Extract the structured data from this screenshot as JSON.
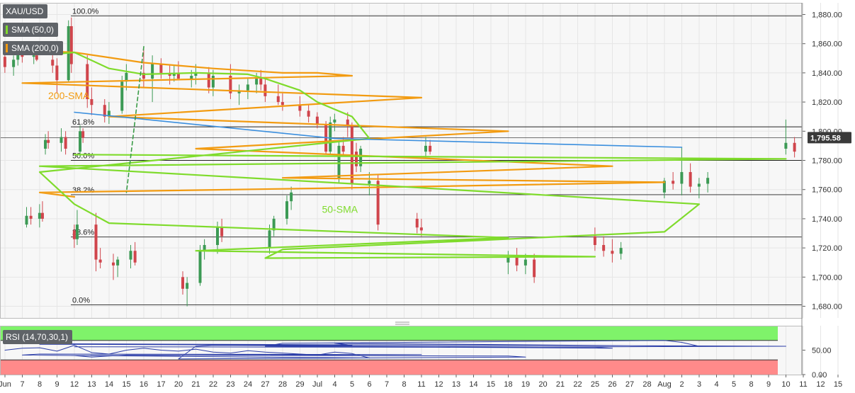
{
  "symbol": "XAU/USD",
  "indicators": [
    {
      "label": "SMA (50,0)",
      "color": "#7fdb2c"
    },
    {
      "label": "SMA (200,0)",
      "color": "#f29b11"
    }
  ],
  "rsi_label": "RSI (14,70,30,1)",
  "current_price_label": "1,795.58",
  "colors": {
    "up": "#3c9a55",
    "down": "#d0454c",
    "sma50": "#7fdb2c",
    "sma200": "#f29b11",
    "resistance": "#3b8fde",
    "trendline": "#3b9c48",
    "rsi_line": "#2c3ea8",
    "overbought": "#7ff36a",
    "oversold": "#ff8a8a"
  },
  "chart_data": [
    {
      "type": "candlestick",
      "title": "XAU/USD",
      "xlabel": "",
      "ylabel": "",
      "ylim": [
        1672,
        1888
      ],
      "x_ticks": [
        "Jun",
        "7",
        "8",
        "9",
        "12",
        "13",
        "14",
        "15",
        "16",
        "17",
        "20",
        "21",
        "22",
        "23",
        "24",
        "27",
        "28",
        "29",
        "Jul",
        "4",
        "5",
        "6",
        "7",
        "8",
        "11",
        "12",
        "13",
        "14",
        "15",
        "18",
        "19",
        "20",
        "21",
        "22",
        "25",
        "26",
        "27",
        "28",
        "Aug",
        "2",
        "3",
        "4",
        "5",
        "8",
        "9",
        "10",
        "11",
        "12",
        "15"
      ],
      "y_ticks": [
        1680,
        1700,
        1720,
        1740,
        1760,
        1780,
        1800,
        1820,
        1840,
        1860,
        1880
      ],
      "y_tick_labels": [
        "1,680.00",
        "1,700.00",
        "1,720.00",
        "1,740.00",
        "1,760.00",
        "1,780.00",
        "1,800.00",
        "1,820.00",
        "1,840.00",
        "1,860.00",
        "1,880.00"
      ],
      "fib_levels": [
        {
          "label": "100.0%",
          "price": 1879
        },
        {
          "label": "61.8%",
          "price": 1803
        },
        {
          "label": "50.0%",
          "price": 1780
        },
        {
          "label": "38.2%",
          "price": 1756.5
        },
        {
          "label": "23.6%",
          "price": 1727.5
        },
        {
          "label": "0.0%",
          "price": 1681
        }
      ],
      "current_price": 1795.58,
      "series": [
        {
          "name": "200-SMA",
          "points": [
            [
              "Jun",
              1856
            ],
            [
              "12",
              1854
            ],
            [
              "16",
              1847
            ],
            [
              "22",
              1843
            ],
            [
              "28",
              1840
            ],
            [
              "Jul",
              1840
            ],
            [
              "5",
              1838
            ],
            [
              "7",
              1833
            ],
            [
              "11",
              1823
            ],
            [
              "14",
              1810
            ],
            [
              "18",
              1800
            ],
            [
              "21",
              1788
            ],
            [
              "26",
              1776
            ],
            [
              "28",
              1768
            ],
            [
              "Aug",
              1765
            ],
            [
              "4",
              1761
            ],
            [
              "8",
              1758
            ],
            [
              "12",
              1755
            ]
          ]
        },
        {
          "name": "50-SMA",
          "points": [
            [
              "Jun",
              1857
            ],
            [
              "9",
              1853
            ],
            [
              "12",
              1854
            ],
            [
              "14",
              1843
            ],
            [
              "16",
              1839
            ],
            [
              "21",
              1840
            ],
            [
              "24",
              1839
            ],
            [
              "27",
              1836
            ],
            [
              "29",
              1828
            ],
            [
              "Jul",
              1820
            ],
            [
              "5",
              1810
            ],
            [
              "6",
              1795
            ],
            [
              "8",
              1772
            ],
            [
              "12",
              1750
            ],
            [
              "14",
              1737
            ],
            [
              "18",
              1727
            ],
            [
              "21",
              1718
            ],
            [
              "25",
              1714
            ],
            [
              "27",
              1713
            ],
            [
              "28",
              1719
            ],
            [
              "Aug",
              1731
            ],
            [
              "3",
              1750
            ],
            [
              "5",
              1764
            ],
            [
              "8",
              1776
            ],
            [
              "10",
              1781
            ],
            [
              "12",
              1784
            ]
          ]
        },
        {
          "name": "resistance",
          "points": [
            [
              "2",
              1789
            ],
            [
              "4",
              1795
            ],
            [
              "12",
              1813
            ]
          ]
        },
        {
          "name": "trendline",
          "points": [
            [
              "16",
              1858
            ],
            [
              "15",
              1758
            ]
          ]
        }
      ],
      "candles": [
        [
          "Jun",
          1851,
          1856,
          1840,
          1844
        ],
        [
          "Jun",
          1844,
          1852,
          1838,
          1849
        ],
        [
          "7",
          1849,
          1858,
          1845,
          1853
        ],
        [
          "7",
          1853,
          1856,
          1847,
          1851
        ],
        [
          "8",
          1851,
          1855,
          1846,
          1852
        ],
        [
          "8",
          1852,
          1858,
          1848,
          1849
        ],
        [
          "9",
          1849,
          1853,
          1840,
          1845
        ],
        [
          "9",
          1845,
          1850,
          1826,
          1835
        ],
        [
          "12",
          1835,
          1876,
          1834,
          1872
        ],
        [
          "12",
          1872,
          1878,
          1840,
          1846
        ],
        [
          "13",
          1846,
          1852,
          1816,
          1822
        ],
        [
          "13",
          1822,
          1830,
          1811,
          1818
        ],
        [
          "14",
          1818,
          1822,
          1806,
          1810
        ],
        [
          "14",
          1810,
          1820,
          1805,
          1814
        ],
        [
          "15",
          1814,
          1838,
          1812,
          1834
        ],
        [
          "15",
          1834,
          1846,
          1828,
          1840
        ],
        [
          "16",
          1840,
          1857,
          1830,
          1836
        ],
        [
          "16",
          1836,
          1852,
          1820,
          1846
        ],
        [
          "17",
          1846,
          1850,
          1836,
          1840
        ],
        [
          "17",
          1840,
          1845,
          1832,
          1838
        ],
        [
          "20",
          1838,
          1845,
          1834,
          1840
        ],
        [
          "20",
          1840,
          1848,
          1836,
          1836
        ],
        [
          "21",
          1836,
          1842,
          1830,
          1838
        ],
        [
          "21",
          1838,
          1846,
          1832,
          1840
        ],
        [
          "22",
          1840,
          1844,
          1826,
          1830
        ],
        [
          "22",
          1830,
          1842,
          1824,
          1838
        ],
        [
          "23",
          1838,
          1846,
          1822,
          1826
        ],
        [
          "23",
          1826,
          1832,
          1818,
          1828
        ],
        [
          "24",
          1828,
          1836,
          1822,
          1832
        ],
        [
          "24",
          1832,
          1840,
          1826,
          1836
        ],
        [
          "27",
          1836,
          1842,
          1828,
          1832
        ],
        [
          "27",
          1832,
          1836,
          1820,
          1824
        ],
        [
          "28",
          1824,
          1832,
          1818,
          1820
        ],
        [
          "28",
          1820,
          1826,
          1814,
          1818
        ],
        [
          "29",
          1818,
          1824,
          1810,
          1814
        ],
        [
          "29",
          1814,
          1818,
          1806,
          1810
        ],
        [
          "Jul",
          1810,
          1813,
          1802,
          1805
        ],
        [
          "Jul",
          1805,
          1807,
          1784,
          1786
        ],
        [
          "4",
          1786,
          1810,
          1784,
          1806
        ],
        [
          "4",
          1806,
          1812,
          1800,
          1808
        ],
        [
          "5",
          1808,
          1813,
          1796,
          1804
        ],
        [
          "5",
          1804,
          1806,
          1760,
          1764
        ],
        [
          "6",
          1764,
          1772,
          1756,
          1766
        ],
        [
          "6",
          1766,
          1770,
          1732,
          1736
        ],
        [
          "7",
          1736,
          1748,
          1734,
          1742
        ],
        [
          "7",
          1742,
          1748,
          1736,
          1740
        ],
        [
          "8",
          1740,
          1750,
          1734,
          1744
        ],
        [
          "8",
          1744,
          1752,
          1738,
          1740
        ],
        [
          "11",
          1740,
          1744,
          1730,
          1734
        ],
        [
          "11",
          1734,
          1740,
          1728,
          1732
        ],
        [
          "12",
          1732,
          1736,
          1720,
          1726
        ],
        [
          "12",
          1726,
          1746,
          1722,
          1736
        ],
        [
          "13",
          1736,
          1744,
          1704,
          1712
        ],
        [
          "13",
          1712,
          1720,
          1706,
          1710
        ],
        [
          "14",
          1710,
          1716,
          1698,
          1708
        ],
        [
          "14",
          1708,
          1714,
          1700,
          1712
        ],
        [
          "15",
          1712,
          1722,
          1706,
          1718
        ],
        [
          "15",
          1718,
          1724,
          1708,
          1710
        ],
        [
          "18",
          1710,
          1718,
          1702,
          1714
        ],
        [
          "18",
          1714,
          1720,
          1704,
          1708
        ],
        [
          "19",
          1708,
          1716,
          1702,
          1712
        ],
        [
          "19",
          1712,
          1716,
          1696,
          1700
        ],
        [
          "20",
          1700,
          1704,
          1688,
          1692
        ],
        [
          "20",
          1692,
          1700,
          1680,
          1696
        ],
        [
          "21",
          1696,
          1722,
          1694,
          1718
        ],
        [
          "21",
          1718,
          1726,
          1712,
          1722
        ],
        [
          "22",
          1722,
          1738,
          1716,
          1734
        ],
        [
          "22",
          1734,
          1740,
          1724,
          1728
        ],
        [
          "25",
          1728,
          1734,
          1718,
          1722
        ],
        [
          "25",
          1722,
          1728,
          1714,
          1718
        ],
        [
          "26",
          1718,
          1726,
          1710,
          1716
        ],
        [
          "26",
          1716,
          1724,
          1712,
          1720
        ],
        [
          "27",
          1720,
          1736,
          1716,
          1732
        ],
        [
          "27",
          1732,
          1742,
          1728,
          1740
        ],
        [
          "28",
          1740,
          1756,
          1736,
          1752
        ],
        [
          "28",
          1752,
          1762,
          1746,
          1758
        ],
        [
          "Aug",
          1758,
          1768,
          1754,
          1766
        ],
        [
          "Aug",
          1766,
          1772,
          1760,
          1764
        ],
        [
          "2",
          1764,
          1789,
          1756,
          1772
        ],
        [
          "2",
          1772,
          1778,
          1758,
          1762
        ],
        [
          "3",
          1762,
          1768,
          1754,
          1764
        ],
        [
          "3",
          1764,
          1772,
          1758,
          1768
        ],
        [
          "4",
          1768,
          1794,
          1764,
          1790
        ],
        [
          "4",
          1790,
          1796,
          1784,
          1786
        ],
        [
          "5",
          1786,
          1792,
          1772,
          1776
        ],
        [
          "5",
          1776,
          1790,
          1772,
          1788
        ],
        [
          "8",
          1788,
          1798,
          1784,
          1794
        ],
        [
          "8",
          1794,
          1800,
          1788,
          1792
        ],
        [
          "9",
          1792,
          1802,
          1786,
          1796
        ],
        [
          "9",
          1796,
          1800,
          1784,
          1788
        ],
        [
          "10",
          1788,
          1808,
          1784,
          1792
        ],
        [
          "10",
          1792,
          1796,
          1782,
          1786
        ],
        [
          "11",
          1786,
          1796,
          1782,
          1790
        ],
        [
          "11",
          1790,
          1794,
          1784,
          1786
        ],
        [
          "12",
          1786,
          1804,
          1782,
          1800
        ],
        [
          "12",
          1800,
          1802,
          1792,
          1795.58
        ]
      ]
    },
    {
      "type": "line",
      "title": "RSI (14,70,30,1)",
      "ylim": [
        0,
        100
      ],
      "y_ticks": [
        0,
        50
      ],
      "y_tick_labels": [
        "0.00",
        "50.00"
      ],
      "overbought": 70,
      "oversold": 30,
      "series": [
        {
          "name": "RSI",
          "points": [
            [
              "Jun",
              50
            ],
            [
              "7",
              54
            ],
            [
              "8",
              55
            ],
            [
              "9",
              48
            ],
            [
              "12",
              60
            ],
            [
              "13",
              45
            ],
            [
              "14",
              42
            ],
            [
              "15",
              50
            ],
            [
              "16",
              54
            ],
            [
              "17",
              50
            ],
            [
              "20",
              48
            ],
            [
              "21",
              52
            ],
            [
              "22",
              46
            ],
            [
              "23",
              44
            ],
            [
              "24",
              49
            ],
            [
              "27",
              46
            ],
            [
              "28",
              44
            ],
            [
              "29",
              42
            ],
            [
              "Jul",
              40
            ],
            [
              "4",
              46
            ],
            [
              "5",
              43
            ],
            [
              "6",
              34
            ],
            [
              "7",
              40
            ],
            [
              "8",
              42
            ],
            [
              "11",
              41
            ],
            [
              "12",
              39
            ],
            [
              "13",
              36
            ],
            [
              "14",
              38
            ],
            [
              "15",
              40
            ],
            [
              "18",
              38
            ],
            [
              "19",
              36
            ],
            [
              "20",
              32
            ],
            [
              "21",
              58
            ],
            [
              "22",
              60
            ],
            [
              "25",
              56
            ],
            [
              "26",
              54
            ],
            [
              "27",
              58
            ],
            [
              "28",
              64
            ],
            [
              "Aug",
              70
            ],
            [
              "2",
              66
            ],
            [
              "3",
              58
            ],
            [
              "4",
              64
            ],
            [
              "5",
              60
            ],
            [
              "8",
              62
            ],
            [
              "9",
              63
            ],
            [
              "10",
              58
            ],
            [
              "11",
              56
            ],
            [
              "12",
              57
            ]
          ]
        }
      ]
    }
  ],
  "annotations": [
    {
      "text": "200-SMA"
    },
    {
      "text": "50-SMA"
    }
  ]
}
